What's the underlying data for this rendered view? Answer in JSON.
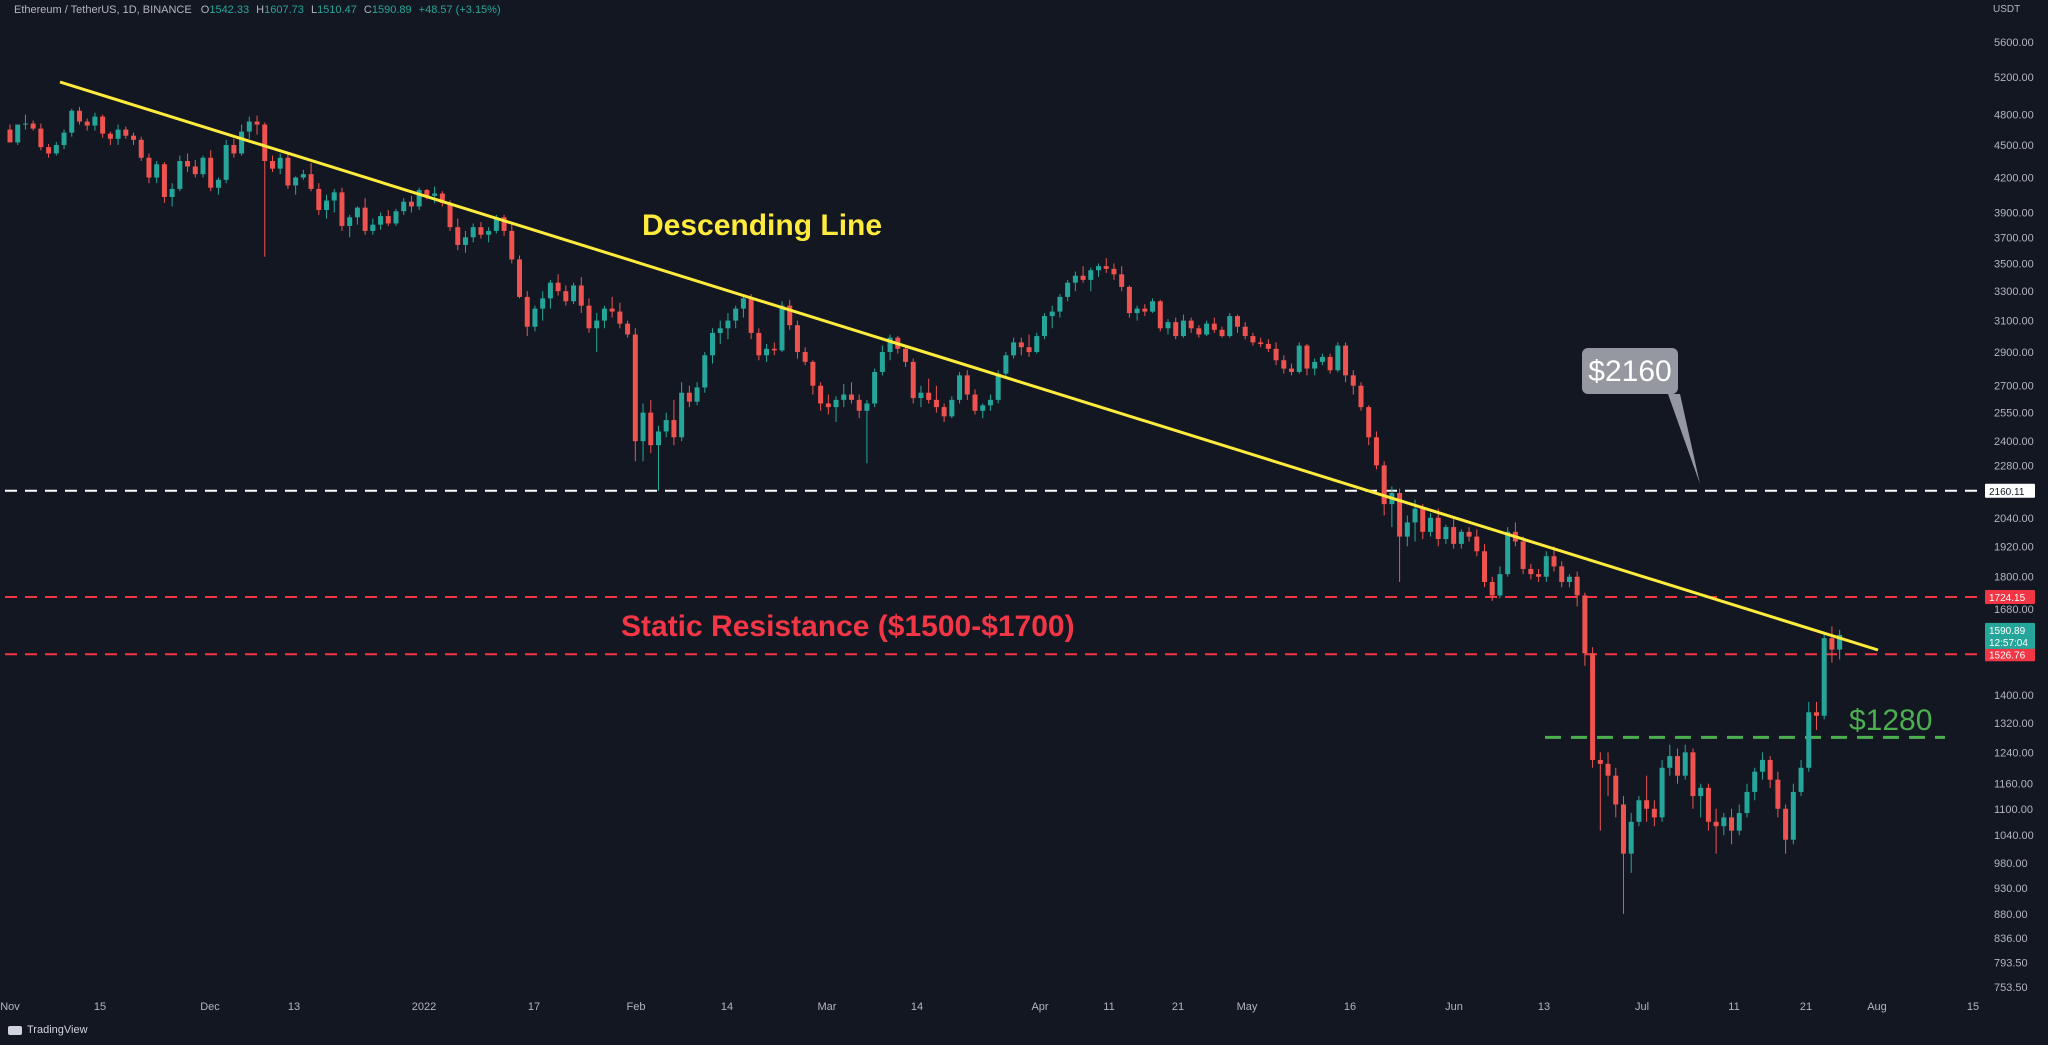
{
  "header": {
    "symbol": "Ethereum / TetherUS, 1D, BINANCE",
    "open_label": "O",
    "open": "1542.33",
    "high_label": "H",
    "high": "1607.73",
    "low_label": "L",
    "low": "1510.47",
    "close_label": "C",
    "close": "1590.89",
    "change": "+48.57 (+3.15%)"
  },
  "currency": "USDT",
  "footer": {
    "brand": "TradingView"
  },
  "colors": {
    "background": "#131722",
    "up": "#26a69a",
    "down": "#ef5350",
    "trendline": "#ffeb3b",
    "resistance": "#f23645",
    "support": "#4caf50",
    "level_2160": "#ffffff",
    "axis_text": "#b2b5be"
  },
  "chart_data": {
    "type": "candlestick",
    "title": "Ethereum / TetherUS, 1D, BINANCE",
    "yscale": "log",
    "ylim": [
      720,
      6100
    ],
    "price_ticks": [
      "5600.00",
      "5200.00",
      "4800.00",
      "4500.00",
      "4200.00",
      "3900.00",
      "3700.00",
      "3500.00",
      "3300.00",
      "3100.00",
      "2900.00",
      "2700.00",
      "2550.00",
      "2400.00",
      "2280.00",
      "2040.00",
      "1920.00",
      "1800.00",
      "1680.00",
      "1400.00",
      "1320.00",
      "1240.00",
      "1160.00",
      "1100.00",
      "1040.00",
      "980.00",
      "930.00",
      "880.00",
      "836.00",
      "793.50",
      "753.50"
    ],
    "date_ticks": [
      "Nov",
      "15",
      "Dec",
      "13",
      "2022",
      "17",
      "Feb",
      "14",
      "Mar",
      "14",
      "Apr",
      "11",
      "21",
      "May",
      "16",
      "Jun",
      "13",
      "Jul",
      "11",
      "21",
      "Aug",
      "15"
    ],
    "date_range": [
      "2021-11-09",
      "2022-08-20"
    ],
    "candles": [
      [
        4650,
        4700,
        4525,
        4525
      ],
      [
        4525,
        4690,
        4500,
        4700
      ],
      [
        4700,
        4800,
        4650,
        4710
      ],
      [
        4710,
        4740,
        4640,
        4660
      ],
      [
        4660,
        4710,
        4450,
        4480
      ],
      [
        4480,
        4510,
        4380,
        4420
      ],
      [
        4420,
        4530,
        4400,
        4500
      ],
      [
        4500,
        4650,
        4460,
        4620
      ],
      [
        4620,
        4860,
        4580,
        4840
      ],
      [
        4840,
        4880,
        4700,
        4730
      ],
      [
        4730,
        4760,
        4640,
        4690
      ],
      [
        4690,
        4820,
        4640,
        4780
      ],
      [
        4780,
        4800,
        4570,
        4610
      ],
      [
        4610,
        4630,
        4500,
        4560
      ],
      [
        4560,
        4700,
        4500,
        4650
      ],
      [
        4650,
        4680,
        4560,
        4590
      ],
      [
        4590,
        4620,
        4500,
        4550
      ],
      [
        4550,
        4580,
        4350,
        4380
      ],
      [
        4380,
        4420,
        4150,
        4200
      ],
      [
        4200,
        4350,
        4150,
        4320
      ],
      [
        4320,
        4340,
        3980,
        4030
      ],
      [
        4030,
        4150,
        3950,
        4100
      ],
      [
        4100,
        4400,
        4080,
        4350
      ],
      [
        4350,
        4420,
        4250,
        4300
      ],
      [
        4300,
        4360,
        4200,
        4230
      ],
      [
        4230,
        4400,
        4200,
        4380
      ],
      [
        4380,
        4450,
        4080,
        4110
      ],
      [
        4110,
        4200,
        4050,
        4180
      ],
      [
        4180,
        4550,
        4150,
        4500
      ],
      [
        4500,
        4560,
        4380,
        4420
      ],
      [
        4420,
        4700,
        4400,
        4630
      ],
      [
        4630,
        4780,
        4560,
        4730
      ],
      [
        4730,
        4790,
        4600,
        4700
      ],
      [
        4700,
        4720,
        3550,
        4350
      ],
      [
        4350,
        4400,
        4250,
        4280
      ],
      [
        4280,
        4420,
        4230,
        4380
      ],
      [
        4380,
        4430,
        4100,
        4130
      ],
      [
        4130,
        4210,
        4050,
        4200
      ],
      [
        4200,
        4270,
        4180,
        4230
      ],
      [
        4230,
        4330,
        4080,
        4100
      ],
      [
        4100,
        4150,
        3880,
        3920
      ],
      [
        3920,
        4050,
        3850,
        4000
      ],
      [
        4000,
        4100,
        3900,
        4070
      ],
      [
        4070,
        4110,
        3750,
        3790
      ],
      [
        3790,
        3880,
        3700,
        3860
      ],
      [
        3860,
        3950,
        3800,
        3940
      ],
      [
        3940,
        4020,
        3720,
        3750
      ],
      [
        3750,
        3850,
        3720,
        3800
      ],
      [
        3800,
        3900,
        3760,
        3870
      ],
      [
        3870,
        3920,
        3790,
        3810
      ],
      [
        3810,
        3930,
        3790,
        3910
      ],
      [
        3910,
        4020,
        3880,
        3990
      ],
      [
        3990,
        4040,
        3900,
        3950
      ],
      [
        3950,
        4110,
        3920,
        4090
      ],
      [
        4090,
        4100,
        4010,
        4040
      ],
      [
        4040,
        4120,
        3980,
        4060
      ],
      [
        4060,
        4080,
        3950,
        3980
      ],
      [
        3980,
        4000,
        3750,
        3780
      ],
      [
        3780,
        3850,
        3600,
        3640
      ],
      [
        3640,
        3750,
        3580,
        3700
      ],
      [
        3700,
        3810,
        3660,
        3780
      ],
      [
        3780,
        3820,
        3690,
        3720
      ],
      [
        3720,
        3780,
        3660,
        3750
      ],
      [
        3750,
        3880,
        3730,
        3860
      ],
      [
        3860,
        3880,
        3710,
        3750
      ],
      [
        3750,
        3800,
        3500,
        3530
      ],
      [
        3530,
        3560,
        3250,
        3260
      ],
      [
        3260,
        3300,
        3000,
        3060
      ],
      [
        3060,
        3200,
        3030,
        3180
      ],
      [
        3180,
        3300,
        3100,
        3250
      ],
      [
        3250,
        3380,
        3180,
        3360
      ],
      [
        3360,
        3420,
        3270,
        3300
      ],
      [
        3300,
        3340,
        3200,
        3230
      ],
      [
        3230,
        3360,
        3210,
        3340
      ],
      [
        3340,
        3400,
        3150,
        3200
      ],
      [
        3200,
        3250,
        3020,
        3050
      ],
      [
        3050,
        3150,
        2900,
        3100
      ],
      [
        3100,
        3200,
        3050,
        3180
      ],
      [
        3180,
        3260,
        3120,
        3160
      ],
      [
        3160,
        3220,
        3050,
        3080
      ],
      [
        3080,
        3100,
        2990,
        3010
      ],
      [
        3010,
        3050,
        2300,
        2400
      ],
      [
        2400,
        2600,
        2300,
        2550
      ],
      [
        2550,
        2620,
        2340,
        2380
      ],
      [
        2380,
        2480,
        2160,
        2450
      ],
      [
        2450,
        2550,
        2420,
        2510
      ],
      [
        2510,
        2620,
        2380,
        2420
      ],
      [
        2420,
        2720,
        2400,
        2660
      ],
      [
        2660,
        2700,
        2580,
        2610
      ],
      [
        2610,
        2720,
        2590,
        2690
      ],
      [
        2690,
        2900,
        2660,
        2880
      ],
      [
        2880,
        3050,
        2830,
        3020
      ],
      [
        3020,
        3100,
        2950,
        3050
      ],
      [
        3050,
        3150,
        2980,
        3100
      ],
      [
        3100,
        3200,
        3050,
        3180
      ],
      [
        3180,
        3280,
        3120,
        3250
      ],
      [
        3250,
        3280,
        2980,
        3020
      ],
      [
        3020,
        3050,
        2850,
        2880
      ],
      [
        2880,
        2950,
        2840,
        2920
      ],
      [
        2920,
        2960,
        2880,
        2910
      ],
      [
        2910,
        3230,
        2900,
        3200
      ],
      [
        3200,
        3240,
        3040,
        3070
      ],
      [
        3070,
        3100,
        2860,
        2900
      ],
      [
        2900,
        2930,
        2820,
        2840
      ],
      [
        2840,
        2850,
        2650,
        2700
      ],
      [
        2700,
        2720,
        2560,
        2600
      ],
      [
        2600,
        2650,
        2540,
        2580
      ],
      [
        2580,
        2640,
        2500,
        2620
      ],
      [
        2620,
        2710,
        2580,
        2650
      ],
      [
        2650,
        2720,
        2600,
        2620
      ],
      [
        2620,
        2650,
        2520,
        2560
      ],
      [
        2560,
        2620,
        2290,
        2600
      ],
      [
        2600,
        2800,
        2580,
        2780
      ],
      [
        2780,
        2940,
        2760,
        2900
      ],
      [
        2900,
        3010,
        2850,
        2990
      ],
      [
        2990,
        3000,
        2890,
        2920
      ],
      [
        2920,
        2940,
        2810,
        2840
      ],
      [
        2840,
        2860,
        2600,
        2630
      ],
      [
        2630,
        2700,
        2580,
        2660
      ],
      [
        2660,
        2740,
        2600,
        2620
      ],
      [
        2620,
        2700,
        2550,
        2580
      ],
      [
        2580,
        2600,
        2500,
        2530
      ],
      [
        2530,
        2640,
        2520,
        2620
      ],
      [
        2620,
        2780,
        2600,
        2760
      ],
      [
        2760,
        2790,
        2620,
        2650
      ],
      [
        2650,
        2680,
        2540,
        2560
      ],
      [
        2560,
        2600,
        2520,
        2590
      ],
      [
        2590,
        2650,
        2560,
        2620
      ],
      [
        2620,
        2790,
        2600,
        2770
      ],
      [
        2770,
        2900,
        2750,
        2880
      ],
      [
        2880,
        2990,
        2860,
        2960
      ],
      [
        2960,
        2990,
        2880,
        2930
      ],
      [
        2930,
        3010,
        2870,
        2900
      ],
      [
        2900,
        3020,
        2890,
        3000
      ],
      [
        3000,
        3150,
        2980,
        3130
      ],
      [
        3130,
        3200,
        3050,
        3160
      ],
      [
        3160,
        3280,
        3120,
        3260
      ],
      [
        3260,
        3380,
        3230,
        3360
      ],
      [
        3360,
        3440,
        3300,
        3410
      ],
      [
        3410,
        3480,
        3360,
        3380
      ],
      [
        3380,
        3470,
        3300,
        3450
      ],
      [
        3450,
        3500,
        3400,
        3480
      ],
      [
        3480,
        3540,
        3430,
        3460
      ],
      [
        3460,
        3500,
        3380,
        3420
      ],
      [
        3420,
        3480,
        3300,
        3330
      ],
      [
        3330,
        3340,
        3120,
        3150
      ],
      [
        3150,
        3200,
        3100,
        3180
      ],
      [
        3180,
        3210,
        3130,
        3160
      ],
      [
        3160,
        3250,
        3150,
        3230
      ],
      [
        3230,
        3240,
        3030,
        3050
      ],
      [
        3050,
        3110,
        3010,
        3090
      ],
      [
        3090,
        3120,
        2980,
        3000
      ],
      [
        3000,
        3140,
        2990,
        3100
      ],
      [
        3100,
        3120,
        3020,
        3050
      ],
      [
        3050,
        3070,
        2990,
        3010
      ],
      [
        3010,
        3100,
        3000,
        3080
      ],
      [
        3080,
        3120,
        3020,
        3040
      ],
      [
        3040,
        3060,
        2990,
        3000
      ],
      [
        3000,
        3150,
        2990,
        3130
      ],
      [
        3130,
        3140,
        3020,
        3060
      ],
      [
        3060,
        3090,
        2980,
        3000
      ],
      [
        3000,
        3020,
        2940,
        2960
      ],
      [
        2960,
        2990,
        2930,
        2950
      ],
      [
        2950,
        2980,
        2900,
        2920
      ],
      [
        2920,
        2960,
        2820,
        2850
      ],
      [
        2850,
        2880,
        2770,
        2800
      ],
      [
        2800,
        2830,
        2760,
        2780
      ],
      [
        2780,
        2960,
        2770,
        2940
      ],
      [
        2940,
        2950,
        2760,
        2800
      ],
      [
        2800,
        2860,
        2760,
        2840
      ],
      [
        2840,
        2890,
        2820,
        2870
      ],
      [
        2870,
        2890,
        2770,
        2790
      ],
      [
        2790,
        2960,
        2780,
        2940
      ],
      [
        2940,
        2960,
        2720,
        2760
      ],
      [
        2760,
        2790,
        2650,
        2700
      ],
      [
        2700,
        2720,
        2560,
        2580
      ],
      [
        2580,
        2590,
        2380,
        2420
      ],
      [
        2420,
        2450,
        2260,
        2280
      ],
      [
        2280,
        2300,
        2050,
        2100
      ],
      [
        2100,
        2180,
        2000,
        2150
      ],
      [
        2150,
        2170,
        1780,
        1960
      ],
      [
        1960,
        2050,
        1920,
        2020
      ],
      [
        2020,
        2120,
        1940,
        2080
      ],
      [
        2080,
        2100,
        1950,
        1980
      ],
      [
        1980,
        2060,
        1960,
        2040
      ],
      [
        2040,
        2080,
        1920,
        1950
      ],
      [
        1950,
        2010,
        1930,
        2000
      ],
      [
        2000,
        2040,
        1910,
        1930
      ],
      [
        1930,
        1990,
        1910,
        1980
      ],
      [
        1980,
        2000,
        1940,
        1960
      ],
      [
        1960,
        1990,
        1880,
        1900
      ],
      [
        1900,
        1930,
        1760,
        1780
      ],
      [
        1780,
        1800,
        1710,
        1730
      ],
      [
        1730,
        1840,
        1720,
        1810
      ],
      [
        1810,
        2000,
        1800,
        1980
      ],
      [
        1980,
        2020,
        1920,
        1940
      ],
      [
        1940,
        1960,
        1810,
        1830
      ],
      [
        1830,
        1850,
        1790,
        1810
      ],
      [
        1810,
        1830,
        1780,
        1800
      ],
      [
        1800,
        1900,
        1780,
        1880
      ],
      [
        1880,
        1920,
        1820,
        1840
      ],
      [
        1840,
        1860,
        1760,
        1780
      ],
      [
        1780,
        1810,
        1760,
        1800
      ],
      [
        1800,
        1820,
        1690,
        1730
      ],
      [
        1730,
        1740,
        1490,
        1530
      ],
      [
        1530,
        1550,
        1200,
        1220
      ],
      [
        1220,
        1240,
        1050,
        1210
      ],
      [
        1210,
        1240,
        1130,
        1180
      ],
      [
        1180,
        1200,
        1080,
        1110
      ],
      [
        1110,
        1130,
        880,
        1000
      ],
      [
        1000,
        1090,
        960,
        1070
      ],
      [
        1070,
        1130,
        1060,
        1120
      ],
      [
        1120,
        1180,
        1070,
        1100
      ],
      [
        1100,
        1120,
        1060,
        1080
      ],
      [
        1080,
        1220,
        1070,
        1200
      ],
      [
        1200,
        1260,
        1180,
        1230
      ],
      [
        1230,
        1250,
        1160,
        1180
      ],
      [
        1180,
        1260,
        1170,
        1240
      ],
      [
        1240,
        1250,
        1100,
        1130
      ],
      [
        1130,
        1160,
        1080,
        1150
      ],
      [
        1150,
        1160,
        1050,
        1070
      ],
      [
        1070,
        1100,
        1000,
        1060
      ],
      [
        1060,
        1090,
        1040,
        1080
      ],
      [
        1080,
        1100,
        1020,
        1050
      ],
      [
        1050,
        1110,
        1040,
        1090
      ],
      [
        1090,
        1160,
        1080,
        1140
      ],
      [
        1140,
        1200,
        1120,
        1190
      ],
      [
        1190,
        1240,
        1170,
        1220
      ],
      [
        1220,
        1230,
        1150,
        1170
      ],
      [
        1170,
        1190,
        1080,
        1100
      ],
      [
        1100,
        1110,
        1000,
        1030
      ],
      [
        1030,
        1160,
        1020,
        1140
      ],
      [
        1140,
        1220,
        1130,
        1200
      ],
      [
        1200,
        1380,
        1190,
        1350
      ],
      [
        1350,
        1380,
        1300,
        1340
      ],
      [
        1340,
        1600,
        1330,
        1580
      ],
      [
        1580,
        1620,
        1500,
        1542
      ],
      [
        1542,
        1608,
        1510,
        1591
      ]
    ],
    "lines": {
      "trendline_label": "Descending Line",
      "level_2160": {
        "value": 2160.11,
        "label": "$2160",
        "tag": "2160.11"
      },
      "resistance_upper": {
        "value": 1724.15,
        "tag": "1724.15"
      },
      "resistance_lower": {
        "value": 1526.76,
        "tag": "1526.76"
      },
      "resistance_label": "Static Resistance ($1500-$1700)",
      "support": {
        "value": 1280,
        "label": "$1280"
      },
      "last_price_tag": {
        "value": "1590.89",
        "countdown": "12:57:04"
      }
    }
  }
}
